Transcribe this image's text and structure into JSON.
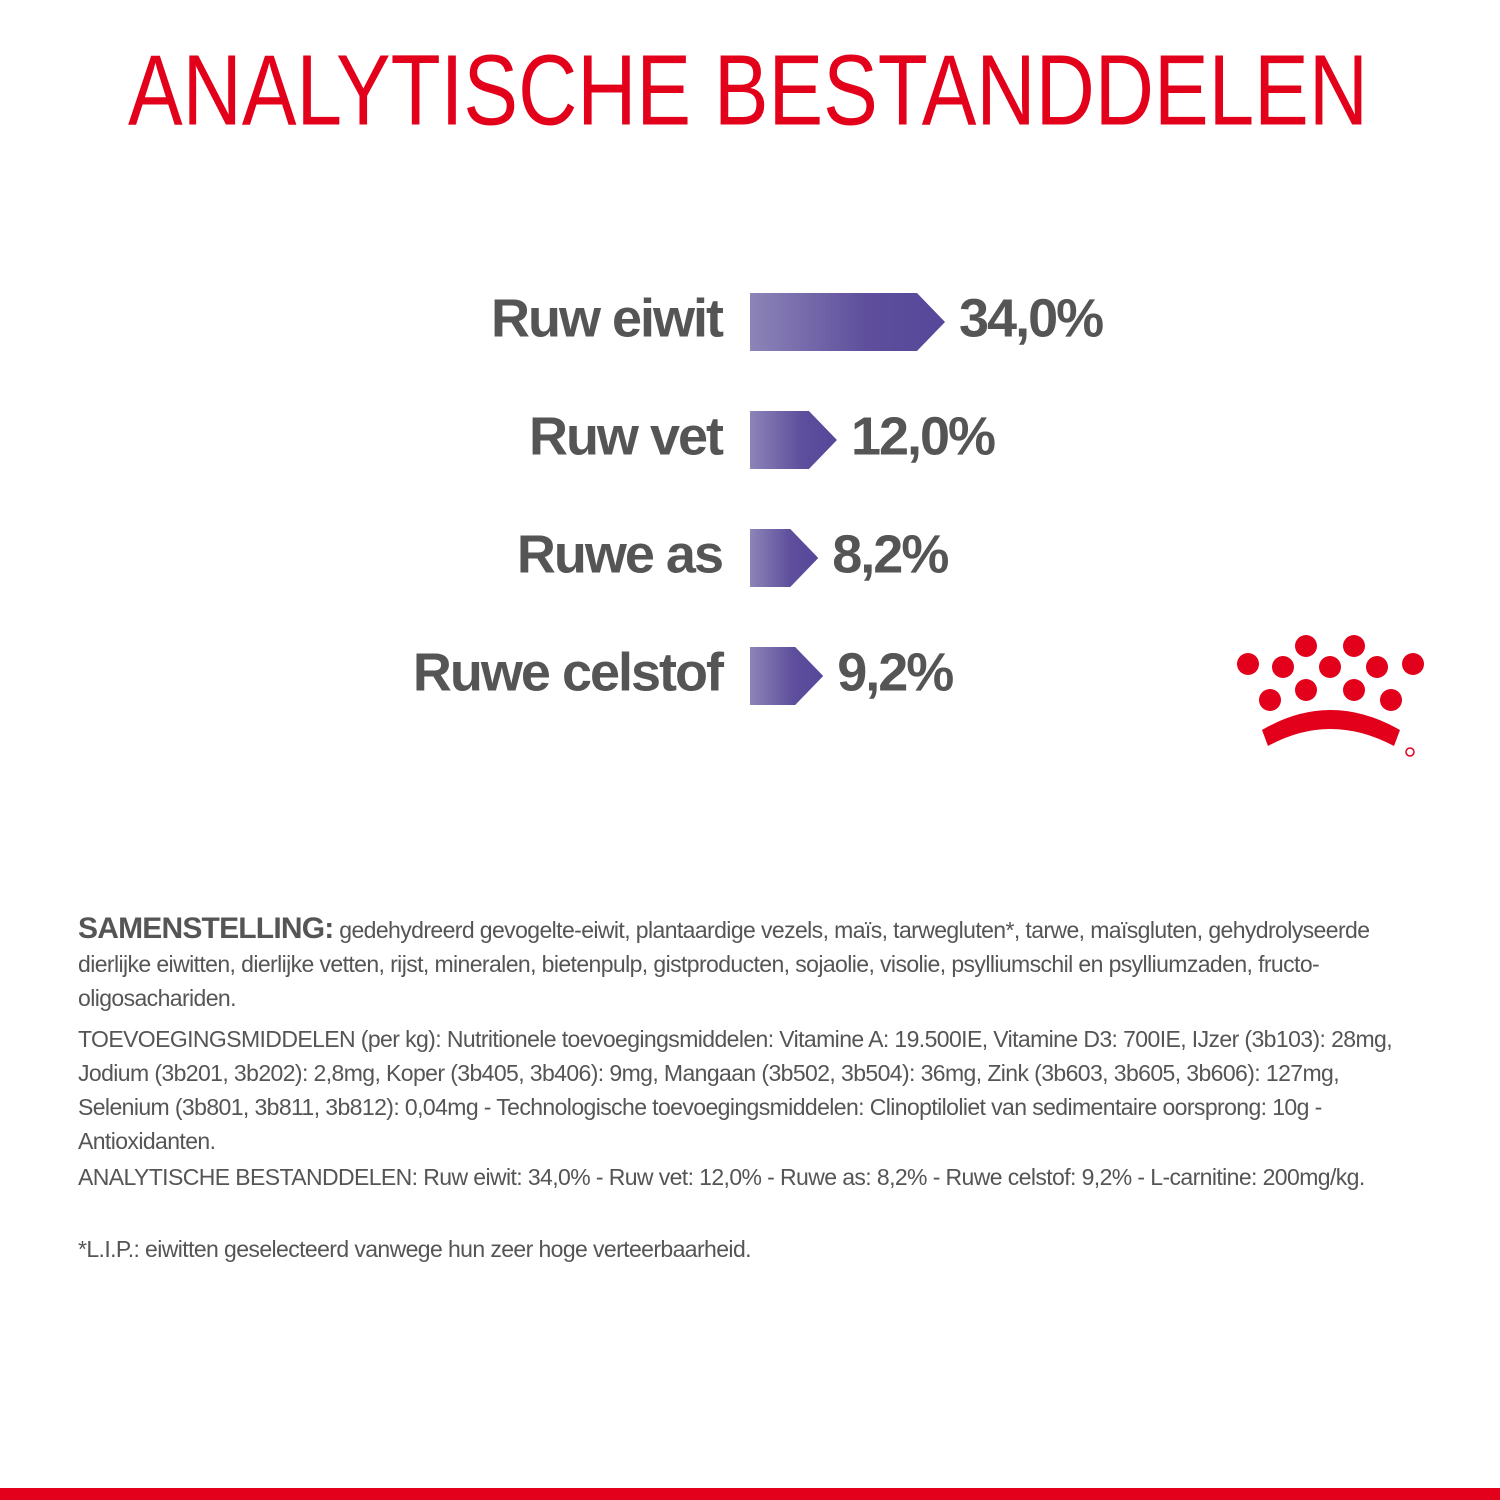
{
  "chart_data": {
    "type": "arrow-bar",
    "title": "ANALYTISCHE BESTANDDELEN",
    "categories": [
      "Ruw eiwit",
      "Ruw vet",
      "Ruwe as",
      "Ruwe celstof"
    ],
    "values": [
      34,
      12,
      8.2,
      9.2
    ],
    "value_labels": [
      "34,0%",
      "12,0%",
      "8,2%",
      "9,2%"
    ],
    "color": "#5b4a99"
  },
  "composition": {
    "label": "SAMENSTELLING:",
    "text": "gedehydreerd gevogelte-eiwit, plantaardige vezels, maïs, tarwegluten*, tarwe, maïsgluten, gehydrolyseerde dierlijke eiwitten, dierlijke vetten, rijst, mineralen, bietenpulp, gistproducten, sojaolie, visolie, psylliumschil en psylliumzaden, fructo-oligosachariden."
  },
  "additives": "TOEVOEGINGSMIDDELEN (per kg): Nutritionele toevoegingsmiddelen: Vitamine A: 19.500IE, Vitamine D3: 700IE, IJzer (3b103): 28mg, Jodium (3b201, 3b202): 2,8mg, Koper (3b405, 3b406): 9mg, Mangaan (3b502, 3b504): 36mg, Zink (3b603, 3b605, 3b606): 127mg, Selenium (3b801, 3b811, 3b812): 0,04mg - Technologische toevoegingsmiddelen: Clinoptiloliet van sedimentaire oorsprong: 10g - Antioxidanten.",
  "analytical": "ANALYTISCHE BESTANDDELEN: Ruw eiwit: 34,0% - Ruw vet: 12,0% - Ruwe as: 8,2% - Ruwe celstof: 9,2% - L-carnitine: 200mg/kg.",
  "footnote": "*L.I.P.: eiwitten geselecteerd vanwege hun zeer hoge verteerbaarheid."
}
